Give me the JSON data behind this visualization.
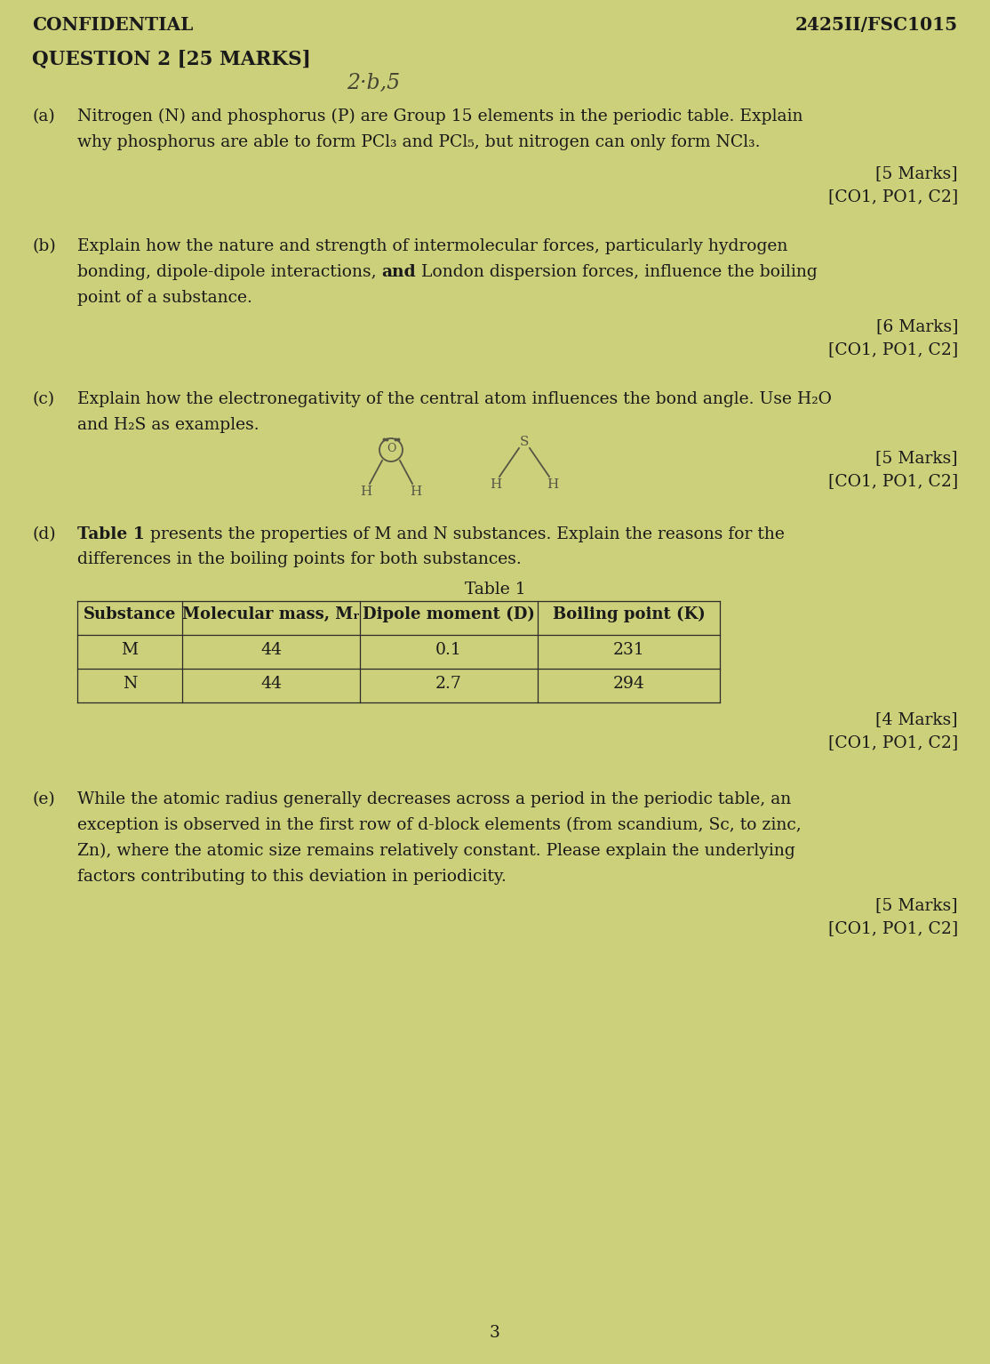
{
  "background_color": "#cdd07a",
  "text_color": "#1a1a1a",
  "confidential": "CONFIDENTIAL",
  "code": "2425II/FSC1015",
  "question_header": "QUESTION 2 [25 MARKS]",
  "handwritten_note": "2·b,5",
  "part_a_label": "(a)",
  "part_a_text_line1": "Nitrogen (N) and phosphorus (P) are Group 15 elements in the periodic table. Explain",
  "part_a_text_line2": "why phosphorus are able to form PCl₃ and PCl₅, but nitrogen can only form NCl₃.",
  "part_a_marks": "[5 Marks]",
  "part_a_co": "[CO1, PO1, C2]",
  "part_b_label": "(b)",
  "part_b_text_line1": "Explain how the nature and strength of intermolecular forces, particularly hydrogen",
  "part_b_text_line2_pre": "bonding, dipole-dipole interactions, ",
  "part_b_text_bold": "and",
  "part_b_text_line2_post": " London dispersion forces, influence the boiling",
  "part_b_text_line3": "point of a substance.",
  "part_b_marks": "[6 Marks]",
  "part_b_co": "[CO1, PO1, C2]",
  "part_c_label": "(c)",
  "part_c_text_line1": "Explain how the electronegativity of the central atom influences the bond angle. Use H₂O",
  "part_c_text_line2": "and H₂S as examples.",
  "part_c_marks": "[5 Marks]",
  "part_c_co": "[CO1, PO1, C2]",
  "part_d_label": "(d)",
  "part_d_text_bold": "Table 1",
  "part_d_text_line1_post": " presents the properties of M and N substances. Explain the reasons for the",
  "part_d_text_line2": "differences in the boiling points for both substances.",
  "table_title": "Table 1",
  "table_headers": [
    "Substance",
    "Molecular mass, Mᵣ",
    "Dipole moment (D)",
    "Boiling point (K)"
  ],
  "table_row1": [
    "M",
    "44",
    "0.1",
    "231"
  ],
  "table_row2": [
    "N",
    "44",
    "2.7",
    "294"
  ],
  "part_d_marks": "[4 Marks]",
  "part_d_co": "[CO1, PO1, C2]",
  "part_e_label": "(e)",
  "part_e_text_line1": "While the atomic radius generally decreases across a period in the periodic table, an",
  "part_e_text_line2": "exception is observed in the first row of d-block elements (from scandium, Sc, to zinc,",
  "part_e_text_line3": "Zn), where the atomic size remains relatively constant. Please explain the underlying",
  "part_e_text_line4": "factors contributing to this deviation in periodicity.",
  "part_e_marks": "[5 Marks]",
  "part_e_co": "[CO1, PO1, C2]",
  "page_number": "3",
  "fs": 13.5,
  "fs_header": 14.5
}
